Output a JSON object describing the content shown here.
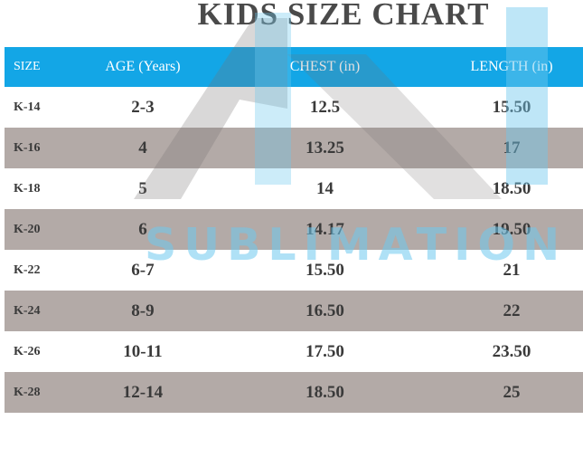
{
  "title": "KIDS SIZE CHART",
  "watermark_text": "SUBLIMATION",
  "colors": {
    "header": "#13a6e6",
    "stripe": "#b3aaa7",
    "title": "#4a4a4a"
  },
  "table": {
    "headers": [
      "SIZE",
      "AGE (Years)",
      "CHEST (in)",
      "LENGTH (in)"
    ],
    "rows": [
      [
        "K-14",
        "2-3",
        "12.5",
        "15.50"
      ],
      [
        "K-16",
        "4",
        "13.25",
        "17"
      ],
      [
        "K-18",
        "5",
        "14",
        "18.50"
      ],
      [
        "K-20",
        "6",
        "14.17",
        "19.50"
      ],
      [
        "K-22",
        "6-7",
        "15.50",
        "21"
      ],
      [
        "K-24",
        "8-9",
        "16.50",
        "22"
      ],
      [
        "K-26",
        "10-11",
        "17.50",
        "23.50"
      ],
      [
        "K-28",
        "12-14",
        "18.50",
        "25"
      ]
    ]
  }
}
